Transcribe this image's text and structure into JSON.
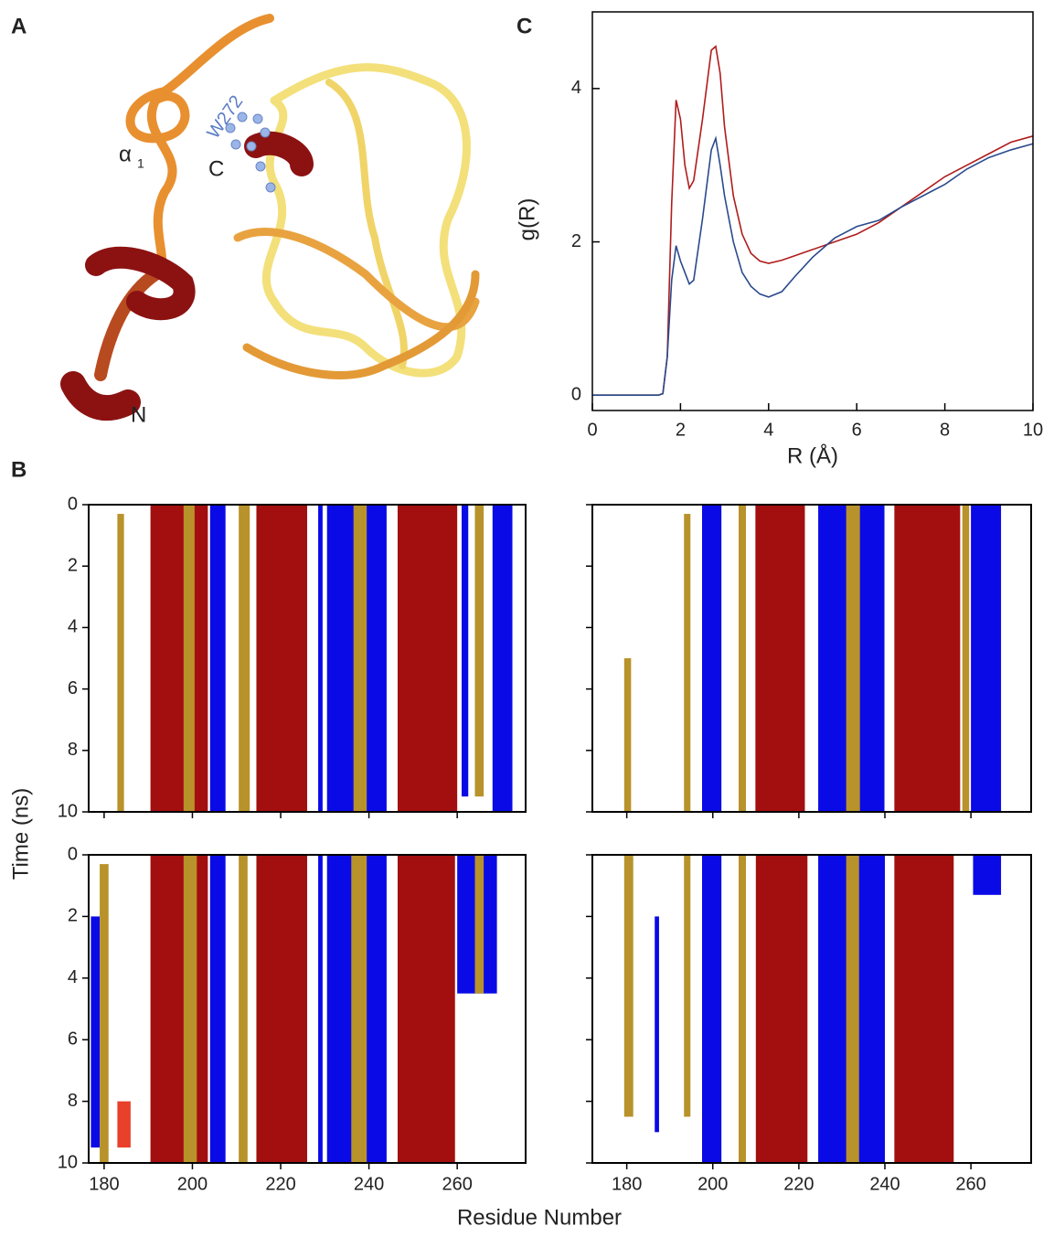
{
  "panel_labels": {
    "a": "A",
    "b": "B",
    "c": "C"
  },
  "structure": {
    "residue": "W272",
    "alpha": "α",
    "alpha_sub": "1",
    "c_term": "C",
    "n_term": "N"
  },
  "chart_data": [
    {
      "type": "line",
      "x_label": "R (Å)",
      "y_label": "g(R)",
      "xlim": [
        0,
        10
      ],
      "ylim": [
        -0.2,
        5.0
      ],
      "xticks": [
        0,
        2,
        4,
        6,
        8,
        10
      ],
      "yticks": [
        0,
        2,
        4
      ],
      "x": [
        0,
        1.5,
        1.6,
        1.7,
        1.8,
        1.9,
        2.0,
        2.1,
        2.2,
        2.3,
        2.5,
        2.7,
        2.8,
        2.9,
        3.0,
        3.2,
        3.4,
        3.6,
        3.8,
        4.0,
        4.3,
        4.6,
        5.0,
        5.5,
        6.0,
        6.5,
        7.0,
        7.5,
        8.0,
        8.5,
        9.0,
        9.5,
        10
      ],
      "series": [
        {
          "color": "#b01c1c",
          "values": [
            0,
            0,
            0.02,
            0.5,
            2.5,
            3.85,
            3.6,
            3.0,
            2.7,
            2.8,
            3.6,
            4.5,
            4.55,
            4.2,
            3.5,
            2.6,
            2.1,
            1.85,
            1.75,
            1.72,
            1.76,
            1.82,
            1.9,
            2.0,
            2.1,
            2.25,
            2.45,
            2.65,
            2.85,
            3.0,
            3.15,
            3.3,
            3.38
          ]
        },
        {
          "color": "#2a4a8c",
          "values": [
            0,
            0,
            0.02,
            0.5,
            1.5,
            1.95,
            1.75,
            1.6,
            1.45,
            1.5,
            2.3,
            3.2,
            3.35,
            3.0,
            2.6,
            2.0,
            1.6,
            1.42,
            1.32,
            1.28,
            1.35,
            1.55,
            1.8,
            2.05,
            2.2,
            2.28,
            2.45,
            2.6,
            2.75,
            2.95,
            3.1,
            3.2,
            3.28
          ]
        }
      ]
    },
    {
      "type": "heatmap",
      "x_label": "Residue Number",
      "y_label": "Time (ns)",
      "panels": [
        {
          "xlim": [
            176.5,
            275.5
          ],
          "ylim": [
            0,
            10
          ],
          "xticks": [
            180,
            200,
            220,
            240,
            260
          ],
          "yticks": [
            0,
            2,
            4,
            6,
            8,
            10
          ],
          "xtick_labels": false,
          "ytick_labels": true,
          "bands": [
            {
              "start": 183,
              "end": 184.5,
              "t0": 0.3,
              "t1": 10,
              "color": "#b8922a"
            },
            {
              "start": 190.5,
              "end": 203.5,
              "t0": 0,
              "t1": 10,
              "color": "#a30f0f"
            },
            {
              "start": 198,
              "end": 200.5,
              "t0": 0,
              "t1": 10,
              "color": "#b8922a"
            },
            {
              "start": 204,
              "end": 207.5,
              "t0": 0,
              "t1": 10,
              "color": "#0a0ae6"
            },
            {
              "start": 210.5,
              "end": 213,
              "t0": 0,
              "t1": 10,
              "color": "#b8922a"
            },
            {
              "start": 214.5,
              "end": 226,
              "t0": 0,
              "t1": 10,
              "color": "#a30f0f"
            },
            {
              "start": 228.5,
              "end": 229.5,
              "t0": 0,
              "t1": 10,
              "color": "#0a0ae6"
            },
            {
              "start": 230.5,
              "end": 244,
              "t0": 0,
              "t1": 10,
              "color": "#0a0ae6"
            },
            {
              "start": 236.5,
              "end": 239.5,
              "t0": 0,
              "t1": 10,
              "color": "#b8922a"
            },
            {
              "start": 246.5,
              "end": 260,
              "t0": 0,
              "t1": 10,
              "color": "#a30f0f"
            },
            {
              "start": 261,
              "end": 262.5,
              "t0": 0,
              "t1": 9.5,
              "color": "#0a0ae6"
            },
            {
              "start": 264,
              "end": 266,
              "t0": 0,
              "t1": 9.5,
              "color": "#b8922a"
            },
            {
              "start": 268,
              "end": 272.5,
              "t0": 0,
              "t1": 10,
              "color": "#0a0ae6"
            }
          ]
        },
        {
          "xlim": [
            172,
            274
          ],
          "ylim": [
            0,
            10
          ],
          "xticks": [
            180,
            200,
            220,
            240,
            260
          ],
          "yticks": [
            0,
            2,
            4,
            6,
            8,
            10
          ],
          "xtick_labels": false,
          "ytick_labels": false,
          "bands": [
            {
              "start": 179.4,
              "end": 181,
              "t0": 5,
              "t1": 10,
              "color": "#b8922a"
            },
            {
              "start": 193.3,
              "end": 194.8,
              "t0": 0.3,
              "t1": 10,
              "color": "#b8922a"
            },
            {
              "start": 197.5,
              "end": 202,
              "t0": 0,
              "t1": 10,
              "color": "#0a0ae6"
            },
            {
              "start": 206,
              "end": 207.7,
              "t0": 0,
              "t1": 10,
              "color": "#b8922a"
            },
            {
              "start": 209.9,
              "end": 221.4,
              "t0": 0,
              "t1": 10,
              "color": "#a30f0f"
            },
            {
              "start": 224.5,
              "end": 239.9,
              "t0": 0,
              "t1": 10,
              "color": "#0a0ae6"
            },
            {
              "start": 231,
              "end": 234.2,
              "t0": 0,
              "t1": 10,
              "color": "#b8922a"
            },
            {
              "start": 242.2,
              "end": 257.5,
              "t0": 0,
              "t1": 10,
              "color": "#a30f0f"
            },
            {
              "start": 258,
              "end": 259.6,
              "t0": 0,
              "t1": 10,
              "color": "#b8922a"
            },
            {
              "start": 260,
              "end": 267,
              "t0": 0,
              "t1": 10,
              "color": "#0a0ae6"
            }
          ]
        },
        {
          "xlim": [
            176.5,
            275.5
          ],
          "ylim": [
            0,
            10
          ],
          "xticks": [
            180,
            200,
            220,
            240,
            260
          ],
          "yticks": [
            0,
            2,
            4,
            6,
            8,
            10
          ],
          "xtick_labels": true,
          "ytick_labels": true,
          "bands": [
            {
              "start": 177,
              "end": 179,
              "t0": 2,
              "t1": 9.5,
              "color": "#0a0ae6"
            },
            {
              "start": 179,
              "end": 181,
              "t0": 0.3,
              "t1": 10,
              "color": "#b8922a"
            },
            {
              "start": 183,
              "end": 186,
              "t0": 8,
              "t1": 9.5,
              "color": "#e8402a"
            },
            {
              "start": 190.5,
              "end": 203.5,
              "t0": 0,
              "t1": 10,
              "color": "#a30f0f"
            },
            {
              "start": 198,
              "end": 201,
              "t0": 0,
              "t1": 10,
              "color": "#b8922a"
            },
            {
              "start": 204,
              "end": 207.5,
              "t0": 0,
              "t1": 10,
              "color": "#0a0ae6"
            },
            {
              "start": 210.5,
              "end": 212.5,
              "t0": 0,
              "t1": 10,
              "color": "#b8922a"
            },
            {
              "start": 214.5,
              "end": 226,
              "t0": 0,
              "t1": 10,
              "color": "#a30f0f"
            },
            {
              "start": 228.5,
              "end": 229.5,
              "t0": 0,
              "t1": 10,
              "color": "#0a0ae6"
            },
            {
              "start": 230.5,
              "end": 244,
              "t0": 0,
              "t1": 10,
              "color": "#0a0ae6"
            },
            {
              "start": 236,
              "end": 239.5,
              "t0": 0,
              "t1": 10,
              "color": "#b8922a"
            },
            {
              "start": 246.5,
              "end": 259.5,
              "t0": 0,
              "t1": 10,
              "color": "#a30f0f"
            },
            {
              "start": 260,
              "end": 269,
              "t0": 0,
              "t1": 4.5,
              "color": "#0a0ae6"
            },
            {
              "start": 264,
              "end": 266,
              "t0": 0,
              "t1": 4.5,
              "color": "#b8922a"
            }
          ]
        },
        {
          "xlim": [
            172,
            274
          ],
          "ylim": [
            0,
            10
          ],
          "xticks": [
            180,
            200,
            220,
            240,
            260
          ],
          "yticks": [
            0,
            2,
            4,
            6,
            8,
            10
          ],
          "xtick_labels": true,
          "ytick_labels": false,
          "bands": [
            {
              "start": 179.4,
              "end": 181.5,
              "t0": 0,
              "t1": 8.5,
              "color": "#b8922a"
            },
            {
              "start": 186.5,
              "end": 187.5,
              "t0": 2,
              "t1": 9,
              "color": "#0a0ae6"
            },
            {
              "start": 193.3,
              "end": 194.8,
              "t0": 0,
              "t1": 8.5,
              "color": "#b8922a"
            },
            {
              "start": 197.5,
              "end": 202,
              "t0": 0,
              "t1": 10,
              "color": "#0a0ae6"
            },
            {
              "start": 206,
              "end": 207.7,
              "t0": 0,
              "t1": 10,
              "color": "#b8922a"
            },
            {
              "start": 210,
              "end": 222,
              "t0": 0,
              "t1": 10,
              "color": "#a30f0f"
            },
            {
              "start": 224.5,
              "end": 240,
              "t0": 0,
              "t1": 10,
              "color": "#0a0ae6"
            },
            {
              "start": 231,
              "end": 234,
              "t0": 0,
              "t1": 10,
              "color": "#b8922a"
            },
            {
              "start": 242.2,
              "end": 256,
              "t0": 0,
              "t1": 10,
              "color": "#a30f0f"
            },
            {
              "start": 260.5,
              "end": 267,
              "t0": 0,
              "t1": 1.3,
              "color": "#0a0ae6"
            }
          ]
        }
      ]
    }
  ]
}
